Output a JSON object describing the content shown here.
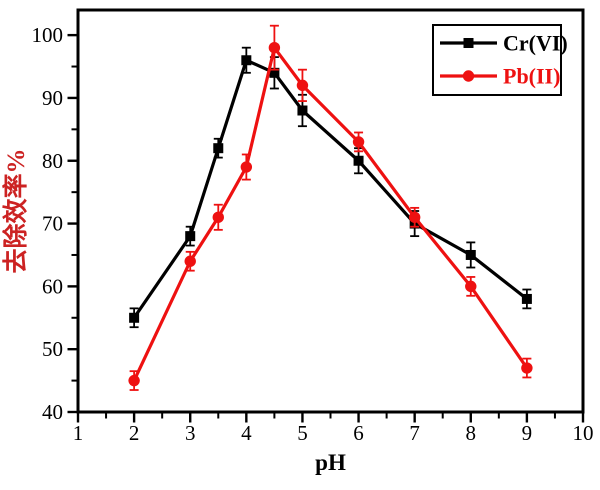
{
  "figure": {
    "background": "#ffffff",
    "frame_color": "#000000"
  },
  "chart_data": {
    "type": "line",
    "title": "",
    "xlabel": "pH",
    "ylabel": "去除效率%",
    "ylabel_color": "#cc2222",
    "xlabel_color": "#000000",
    "tick_label_color": "#000000",
    "xlim": [
      1,
      10
    ],
    "ylim": [
      40,
      104
    ],
    "x_major_ticks": [
      1,
      2,
      3,
      4,
      5,
      6,
      7,
      8,
      9,
      10
    ],
    "x_minor_ticks": [
      1.5,
      2.5,
      3.5,
      4.5,
      5.5,
      6.5,
      7.5,
      8.5,
      9.5
    ],
    "y_major_ticks": [
      40,
      50,
      60,
      70,
      80,
      90,
      100
    ],
    "y_minor_ticks": [
      45,
      55,
      65,
      75,
      85,
      95
    ],
    "grid": false,
    "legend_position": "top-right",
    "error_bars": true,
    "series": [
      {
        "name": "Cr(VI)",
        "color": "#000000",
        "marker": "square",
        "x": [
          2,
          3,
          3.5,
          4,
          4.5,
          5,
          6,
          7,
          8,
          9
        ],
        "y": [
          55,
          68,
          82,
          96,
          94,
          88,
          80,
          70,
          65,
          58
        ],
        "yerr": [
          1.5,
          1.5,
          1.5,
          2,
          2.5,
          2.5,
          2,
          2,
          2,
          1.5
        ]
      },
      {
        "name": "Pb(II)",
        "color": "#ee1111",
        "marker": "circle",
        "x": [
          2,
          3,
          3.5,
          4,
          4.5,
          5,
          6,
          7,
          8,
          9
        ],
        "y": [
          45,
          64,
          71,
          79,
          98,
          92,
          83,
          71,
          60,
          47
        ],
        "yerr": [
          1.5,
          1.5,
          2,
          2,
          3.5,
          2.5,
          1.5,
          1.5,
          1.5,
          1.5
        ]
      }
    ]
  }
}
